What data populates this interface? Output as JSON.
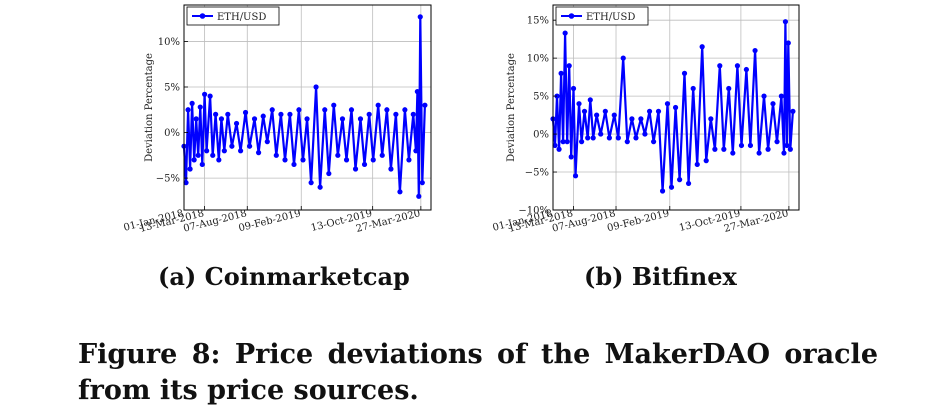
{
  "figure": {
    "caption": "Figure 8: Price deviations of the MakerDAO oracle from its price sources."
  },
  "chart_data": [
    {
      "type": "line",
      "subcaption": "(a) Coinmarketcap",
      "ylabel": "Deviation Percentage",
      "legend": {
        "entries": [
          "ETH/USD"
        ],
        "placement": "top-left"
      },
      "grid": true,
      "x_ticks": [
        "01-Jan-2018",
        "13-Mar-2018",
        "07-Aug-2018",
        "09-Feb-2019",
        "13-Oct-2019",
        "27-Mar-2020"
      ],
      "x_tick_dates": [
        "2018-01-01",
        "2018-03-13",
        "2018-08-07",
        "2019-02-09",
        "2019-10-13",
        "2020-03-27"
      ],
      "xlim": [
        "2018-01-01",
        "2020-05-01"
      ],
      "y_ticks": [
        -5,
        0,
        5,
        10
      ],
      "ylim": [
        -8.5,
        14
      ],
      "series": [
        {
          "name": "ETH/USD",
          "color": "#0000ff",
          "x": [
            "2018-01-01",
            "2018-01-08",
            "2018-01-15",
            "2018-01-22",
            "2018-01-29",
            "2018-02-05",
            "2018-02-12",
            "2018-02-19",
            "2018-02-26",
            "2018-03-05",
            "2018-03-13",
            "2018-03-20",
            "2018-04-01",
            "2018-04-10",
            "2018-04-20",
            "2018-05-01",
            "2018-05-10",
            "2018-05-20",
            "2018-06-01",
            "2018-06-15",
            "2018-07-01",
            "2018-07-15",
            "2018-08-01",
            "2018-08-15",
            "2018-09-01",
            "2018-09-15",
            "2018-10-01",
            "2018-10-15",
            "2018-11-01",
            "2018-11-15",
            "2018-12-01",
            "2018-12-15",
            "2019-01-01",
            "2019-01-15",
            "2019-02-01",
            "2019-02-15",
            "2019-03-01",
            "2019-03-15",
            "2019-04-01",
            "2019-04-15",
            "2019-05-01",
            "2019-05-15",
            "2019-06-01",
            "2019-06-15",
            "2019-07-01",
            "2019-07-15",
            "2019-08-01",
            "2019-08-15",
            "2019-09-01",
            "2019-09-15",
            "2019-10-01",
            "2019-10-15",
            "2019-11-01",
            "2019-11-15",
            "2019-12-01",
            "2019-12-15",
            "2020-01-01",
            "2020-01-15",
            "2020-02-01",
            "2020-02-15",
            "2020-03-01",
            "2020-03-10",
            "2020-03-15",
            "2020-03-20",
            "2020-03-25",
            "2020-04-01",
            "2020-04-10"
          ],
          "y": [
            -1.5,
            -5.5,
            2.5,
            -4.0,
            3.2,
            -3.0,
            1.5,
            -2.5,
            2.8,
            -3.5,
            4.2,
            -2.0,
            4.0,
            -2.5,
            2.0,
            -3.0,
            1.5,
            -2.0,
            2.0,
            -1.5,
            1.0,
            -2.0,
            2.2,
            -1.5,
            1.5,
            -2.2,
            1.8,
            -1.0,
            2.5,
            -2.5,
            2.0,
            -3.0,
            2.0,
            -3.5,
            2.5,
            -3.0,
            1.5,
            -5.5,
            5.0,
            -6.0,
            2.5,
            -4.5,
            3.0,
            -2.5,
            1.5,
            -3.0,
            2.5,
            -4.0,
            1.5,
            -3.5,
            2.0,
            -3.0,
            3.0,
            -2.5,
            2.5,
            -4.0,
            2.0,
            -6.5,
            2.5,
            -3.0,
            2.0,
            -2.0,
            4.5,
            -7.0,
            12.7,
            -5.5,
            3.0
          ]
        }
      ]
    },
    {
      "type": "line",
      "subcaption": "(b) Bitfinex",
      "ylabel": "Deviation Percentage",
      "legend": {
        "entries": [
          "ETH/USD"
        ],
        "placement": "top-left"
      },
      "grid": true,
      "x_ticks": [
        "01-Jan-2018",
        "13-Mar-2018",
        "07-Aug-2018",
        "09-Feb-2019",
        "13-Oct-2019",
        "27-Mar-2020"
      ],
      "x_tick_dates": [
        "2018-01-01",
        "2018-03-13",
        "2018-08-07",
        "2019-02-09",
        "2019-10-13",
        "2020-03-27"
      ],
      "xlim": [
        "2018-01-01",
        "2020-05-01"
      ],
      "y_ticks": [
        -10,
        -5,
        0,
        5,
        10,
        15
      ],
      "ylim": [
        -10,
        17
      ],
      "series": [
        {
          "name": "ETH/USD",
          "color": "#0000ff",
          "x": [
            "2018-01-01",
            "2018-01-08",
            "2018-01-15",
            "2018-01-22",
            "2018-01-29",
            "2018-02-05",
            "2018-02-12",
            "2018-02-19",
            "2018-02-26",
            "2018-03-05",
            "2018-03-13",
            "2018-03-20",
            "2018-04-01",
            "2018-04-10",
            "2018-04-20",
            "2018-05-01",
            "2018-05-10",
            "2018-05-20",
            "2018-06-01",
            "2018-06-15",
            "2018-07-01",
            "2018-07-15",
            "2018-08-01",
            "2018-08-15",
            "2018-09-01",
            "2018-09-15",
            "2018-10-01",
            "2018-10-15",
            "2018-11-01",
            "2018-11-15",
            "2018-12-01",
            "2018-12-15",
            "2019-01-01",
            "2019-01-15",
            "2019-02-01",
            "2019-02-15",
            "2019-03-01",
            "2019-03-15",
            "2019-04-01",
            "2019-04-15",
            "2019-05-01",
            "2019-05-15",
            "2019-06-01",
            "2019-06-15",
            "2019-07-01",
            "2019-07-15",
            "2019-08-01",
            "2019-08-15",
            "2019-09-01",
            "2019-09-15",
            "2019-10-01",
            "2019-10-15",
            "2019-11-01",
            "2019-11-15",
            "2019-12-01",
            "2019-12-15",
            "2020-01-01",
            "2020-01-15",
            "2020-02-01",
            "2020-02-15",
            "2020-03-01",
            "2020-03-10",
            "2020-03-15",
            "2020-03-20",
            "2020-03-25",
            "2020-04-01",
            "2020-04-10"
          ],
          "y": [
            2.0,
            -1.5,
            5.0,
            -2.0,
            8.0,
            -1.0,
            13.3,
            -1.0,
            9.0,
            -3.0,
            6.0,
            -5.5,
            4.0,
            -1.0,
            3.0,
            -0.5,
            4.5,
            -0.5,
            2.5,
            0.0,
            3.0,
            -0.5,
            2.5,
            -0.5,
            10.0,
            -1.0,
            2.0,
            -0.5,
            2.0,
            0.0,
            3.0,
            -1.0,
            3.0,
            -7.5,
            4.0,
            -7.0,
            3.5,
            -6.0,
            8.0,
            -6.5,
            6.0,
            -4.0,
            11.5,
            -3.5,
            2.0,
            -2.0,
            9.0,
            -2.0,
            6.0,
            -2.5,
            9.0,
            -1.5,
            8.5,
            -1.5,
            11.0,
            -2.5,
            5.0,
            -2.0,
            4.0,
            -1.0,
            5.0,
            -2.5,
            14.8,
            -1.5,
            12.0,
            -2.0,
            3.0
          ]
        }
      ]
    }
  ]
}
